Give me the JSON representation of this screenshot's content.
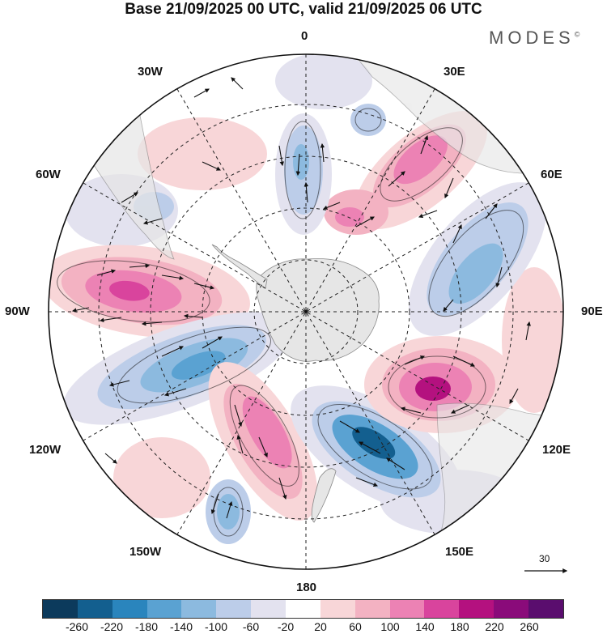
{
  "title": "Base 21/09/2025 00 UTC, valid 21/09/2025 06 UTC",
  "brand": "MODES",
  "brand_mark": "©",
  "longitude_labels": {
    "top": "0",
    "nne": "30E",
    "ene": "60E",
    "east": "90E",
    "ese": "120E",
    "sse": "150E",
    "bottom": "180",
    "ssw": "150W",
    "wsw": "120W",
    "west": "90W",
    "wnw": "60W",
    "nnw": "30W"
  },
  "reference_vector": {
    "label": "30"
  },
  "colorbar": {
    "colors": [
      "#0c3a5c",
      "#135f8f",
      "#2a85bd",
      "#5aa2d2",
      "#8cbadf",
      "#bccde9",
      "#e3e2ef",
      "#ffffff",
      "#f8d6d8",
      "#f3b2c2",
      "#ec82b4",
      "#d9449d",
      "#b4117f",
      "#8a0b7a",
      "#5a0d6e"
    ],
    "ticks": [
      "-260",
      "-220",
      "-180",
      "-140",
      "-100",
      "-60",
      "-20",
      "20",
      "60",
      "100",
      "140",
      "180",
      "220",
      "260"
    ]
  },
  "anomaly_colors": {
    "pos1": "#f8d6d8",
    "pos2": "#f3b2c2",
    "pos3": "#ec82b4",
    "pos4": "#d9449d",
    "pos5": "#b4117f",
    "pos6": "#8a0b7a",
    "neg1": "#e3e2ef",
    "neg2": "#bccde9",
    "neg3": "#8cbadf",
    "neg4": "#5aa2d2",
    "neg5": "#2a85bd",
    "neg6": "#135f8f",
    "neg7": "#0c3a5c",
    "land": "#e6e6e6"
  }
}
